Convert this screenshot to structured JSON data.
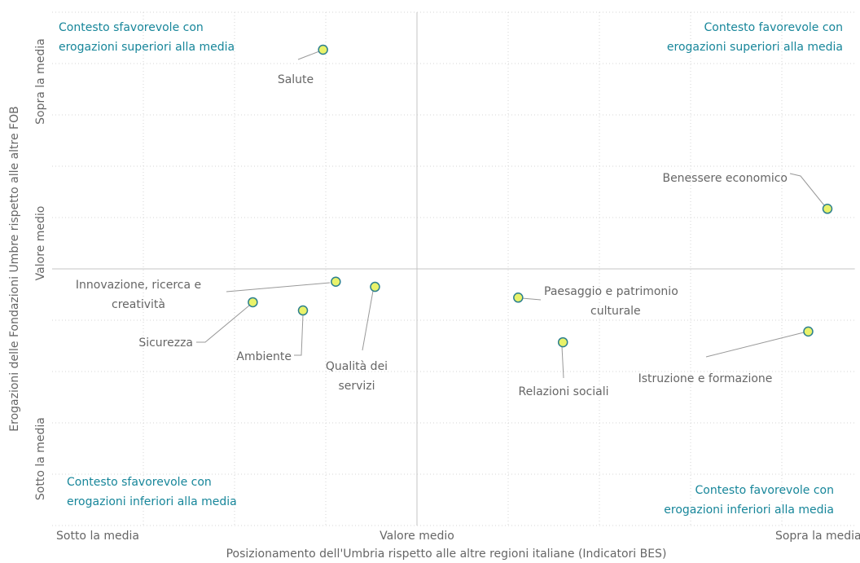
{
  "chart_data": {
    "type": "scatter",
    "x_label": "Posizionamento dell'Umbria rispetto alle altre regioni italiane (Indicatori BES)",
    "y_label": "Erogazioni delle Fondazioni Umbre rispetto alle altre FOB",
    "xlim": [
      -4,
      4.8
    ],
    "ylim": [
      -5,
      5
    ],
    "xticks": [
      {
        "value": -3.5,
        "label": "Sotto la media"
      },
      {
        "value": 0,
        "label": "Valore medio"
      },
      {
        "value": 4.4,
        "label": "Sopra la media"
      }
    ],
    "yticks": [
      {
        "value": -3.7,
        "label": "Sotto la media"
      },
      {
        "value": 0.5,
        "label": "Valore medio"
      },
      {
        "value": 3.65,
        "label": "Sopra la media"
      }
    ],
    "xgrid": [
      -3,
      -2,
      -1,
      1,
      2,
      3,
      4
    ],
    "ygrid": [
      -4,
      -3,
      -2,
      -1,
      1,
      2,
      3,
      4
    ],
    "color": "#e9f26a",
    "edge_color": "#2b7f8e",
    "annotations": [
      "Contesto sfavorevole con\nerogazioni superiori alla media",
      "Contesto favorevole con\nerogazioni superiori alla media",
      "Contesto sfavorevole con\nerogazioni inferiori alla media",
      "Contesto favorevole con\nerogazioni inferiori alla media"
    ],
    "labels": [
      "Salute",
      "Benessere economico",
      "Innovazione, ricerca e\ncreatività",
      "Qualità dei\nservizi",
      "Sicurezza",
      "Ambiente",
      "Paesaggio e patrimonio\nculturale",
      "Relazioni sociali",
      "Istruzione e formazione"
    ],
    "x": [
      -1.03,
      4.5,
      -0.89,
      -0.46,
      -1.8,
      -1.25,
      1.11,
      1.6,
      4.29
    ],
    "y": [
      4.27,
      1.17,
      -0.25,
      -0.35,
      -0.65,
      -0.81,
      -0.56,
      -1.43,
      -1.22
    ]
  }
}
